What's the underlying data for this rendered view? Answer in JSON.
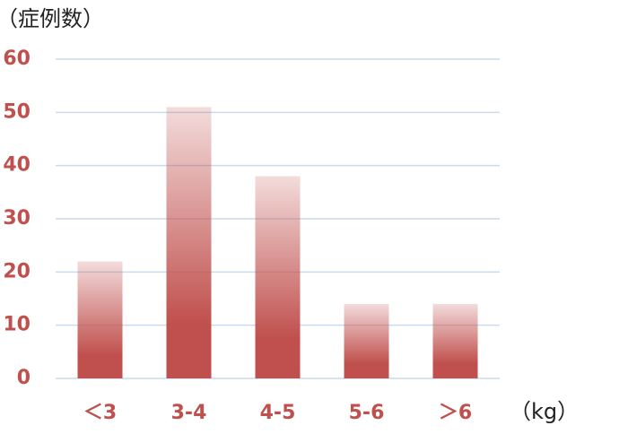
{
  "chart_data": {
    "type": "bar",
    "y_label": "（症例数）",
    "x_unit": "（kg）",
    "categories": [
      "＜3",
      "3-4",
      "4-5",
      "5-6",
      "＞6"
    ],
    "values": [
      22,
      51,
      38,
      14,
      14
    ],
    "color": "#c0504d",
    "ylim": [
      0,
      60
    ],
    "yticks": [
      0,
      10,
      20,
      30,
      40,
      50,
      60
    ],
    "grid": true
  }
}
